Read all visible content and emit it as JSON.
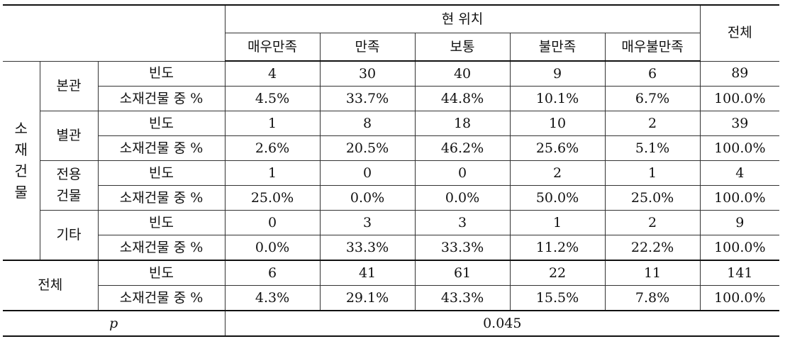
{
  "table": {
    "header": {
      "group_label": "현 위치",
      "total_label": "전체",
      "columns": [
        "매우만족",
        "만족",
        "보통",
        "불만족",
        "매우불만족"
      ]
    },
    "row_group_label_chars": [
      "소",
      "재",
      "건",
      "물"
    ],
    "measure_labels": {
      "count": "빈도",
      "percent": "소재건물 중 %"
    },
    "groups": [
      {
        "name": "본관",
        "count": [
          "4",
          "30",
          "40",
          "9",
          "6",
          "89"
        ],
        "percent": [
          "4.5%",
          "33.7%",
          "44.8%",
          "10.1%",
          "6.7%",
          "100.0%"
        ]
      },
      {
        "name": "별관",
        "count": [
          "1",
          "8",
          "18",
          "10",
          "2",
          "39"
        ],
        "percent": [
          "2.6%",
          "20.5%",
          "46.2%",
          "25.6%",
          "5.1%",
          "100.0%"
        ]
      },
      {
        "name_lines": [
          "전용",
          "건물"
        ],
        "count": [
          "1",
          "0",
          "0",
          "2",
          "1",
          "4"
        ],
        "percent": [
          "25.0%",
          "0.0%",
          "0.0%",
          "50.0%",
          "25.0%",
          "100.0%"
        ]
      },
      {
        "name": "기타",
        "count": [
          "0",
          "3",
          "3",
          "1",
          "2",
          "9"
        ],
        "percent": [
          "0.0%",
          "33.3%",
          "33.3%",
          "11.2%",
          "22.2%",
          "100.0%"
        ]
      }
    ],
    "total": {
      "name": "전체",
      "count": [
        "6",
        "41",
        "61",
        "22",
        "11",
        "141"
      ],
      "percent": [
        "4.3%",
        "29.1%",
        "43.3%",
        "15.5%",
        "7.8%",
        "100.0%"
      ]
    },
    "p_row": {
      "label": "p",
      "value": "0.045"
    }
  }
}
